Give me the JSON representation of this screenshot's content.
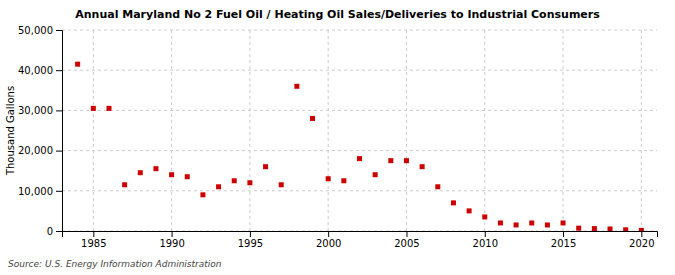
{
  "chart_data": {
    "type": "scatter",
    "title": "Annual Maryland No 2 Fuel Oil / Heating Oil Sales/Deliveries to Industrial Consumers",
    "ylabel": "Thousand Gallons",
    "annotations": [
      "Source: U.S. Energy Information Administration"
    ],
    "x": [
      1984,
      1985,
      1986,
      1987,
      1988,
      1989,
      1990,
      1991,
      1992,
      1993,
      1994,
      1995,
      1996,
      1997,
      1998,
      1999,
      2000,
      2001,
      2002,
      2003,
      2004,
      2005,
      2006,
      2007,
      2008,
      2009,
      2010,
      2011,
      2012,
      2013,
      2014,
      2015,
      2016,
      2017,
      2018,
      2019,
      2020
    ],
    "values": [
      41500,
      30500,
      30500,
      11500,
      14500,
      15500,
      14000,
      13500,
      9000,
      11000,
      12500,
      12000,
      16000,
      11500,
      36000,
      28000,
      13000,
      12500,
      18000,
      14000,
      17500,
      17500,
      16000,
      11000,
      7000,
      5000,
      3500,
      2000,
      1500,
      2000,
      1500,
      2000,
      700,
      600,
      500,
      300,
      150
    ],
    "color": "#cc0000",
    "marker": "square",
    "xlim": [
      1983,
      2021
    ],
    "ylim": [
      0,
      50000
    ],
    "xticks": [
      1985,
      1990,
      1995,
      2000,
      2005,
      2010,
      2015,
      2020
    ],
    "yticks": [
      0,
      {
        "value": 10000,
        "label": "10,000"
      },
      {
        "value": 20000,
        "label": "20,000"
      },
      {
        "value": 30000,
        "label": "30,000"
      },
      {
        "value": 40000,
        "label": "40,000"
      },
      {
        "value": 50000,
        "label": "50,000"
      }
    ],
    "grid": true
  }
}
